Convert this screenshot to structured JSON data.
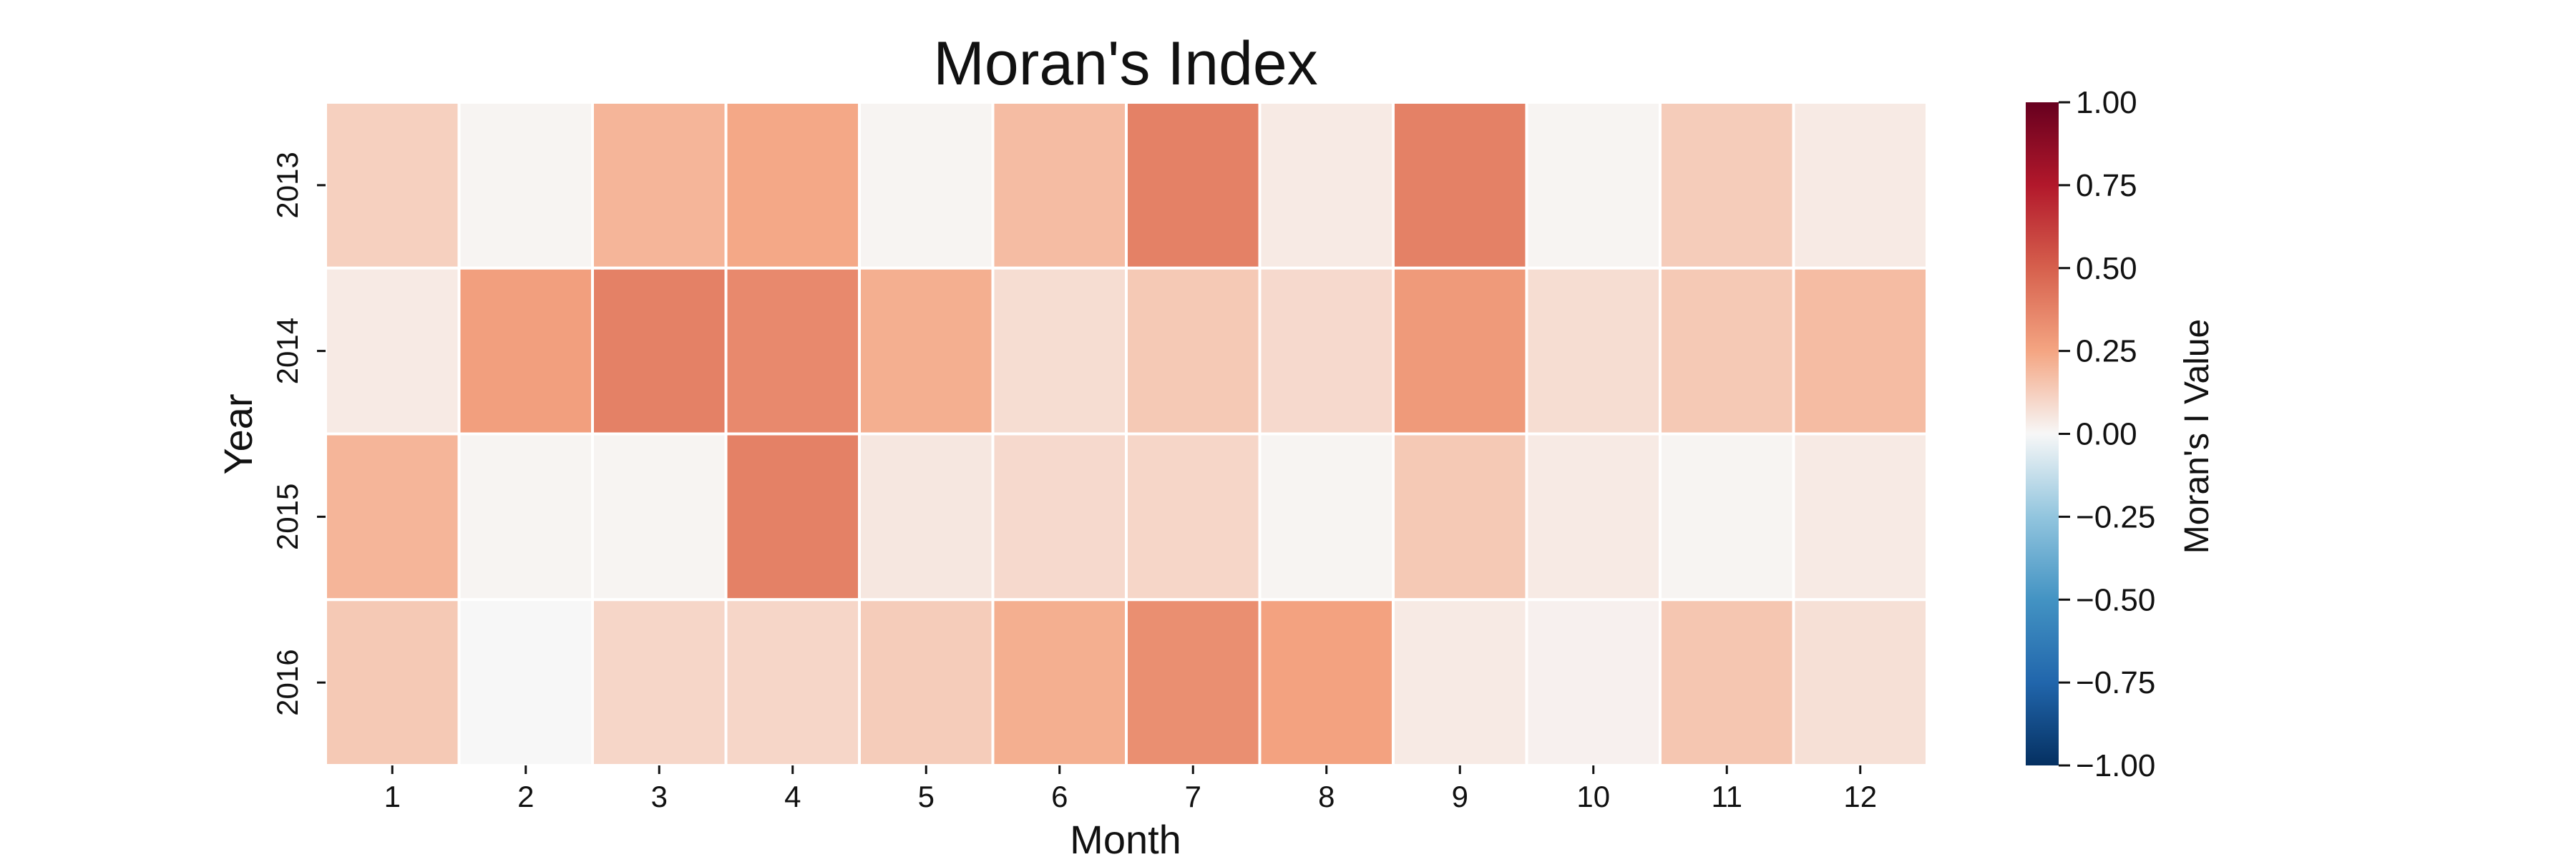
{
  "chart_data": {
    "type": "heatmap",
    "title": "Moran's Index",
    "xlabel": "Month",
    "ylabel": "Year",
    "x_categories": [
      "1",
      "2",
      "3",
      "4",
      "5",
      "6",
      "7",
      "8",
      "9",
      "10",
      "11",
      "12"
    ],
    "y_categories": [
      "2013",
      "2014",
      "2015",
      "2016"
    ],
    "values": [
      [
        0.12,
        0.01,
        0.2,
        0.24,
        0.01,
        0.18,
        0.38,
        0.04,
        0.38,
        0.01,
        0.13,
        0.04
      ],
      [
        0.04,
        0.27,
        0.38,
        0.35,
        0.22,
        0.08,
        0.14,
        0.09,
        0.29,
        0.08,
        0.14,
        0.18
      ],
      [
        0.2,
        0.01,
        0.01,
        0.38,
        0.05,
        0.09,
        0.1,
        0.01,
        0.14,
        0.04,
        0.01,
        0.04
      ],
      [
        0.14,
        0.0,
        0.1,
        0.1,
        0.13,
        0.22,
        0.33,
        0.26,
        0.04,
        0.02,
        0.15,
        0.07
      ]
    ],
    "colorbar": {
      "label": "Moran's I Value",
      "ticks": [
        "1.00",
        "0.75",
        "0.50",
        "0.25",
        "0.00",
        "−0.25",
        "−0.50",
        "−0.75",
        "−1.00"
      ],
      "vmin": -1.0,
      "vmax": 1.0,
      "colormap": "RdBu_r"
    },
    "grid": false
  }
}
